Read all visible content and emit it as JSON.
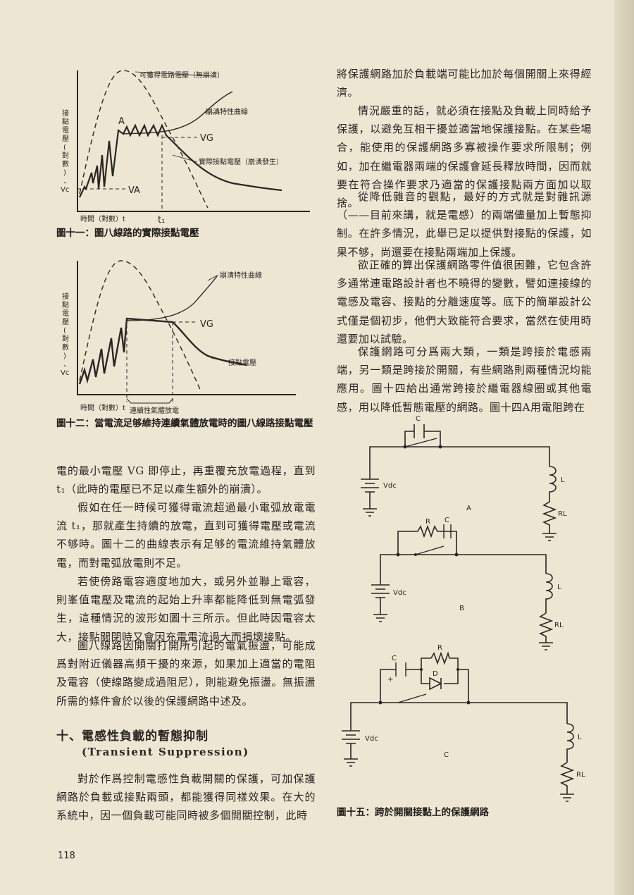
{
  "figure11": {
    "label_available_voltage": "可獲得電路電壓（無崩潰）",
    "label_breakdown_curve": "崩潰特性曲線",
    "label_actual_voltage": "實際接點電壓（崩潰發生）",
    "y_axis_label": [
      "接",
      "點",
      "電",
      "壓",
      "(",
      "對",
      "數",
      ")",
      "、",
      "Vc"
    ],
    "x_axis_label": "時間（對數）t",
    "point_a": "A",
    "vg_label": "VG",
    "va_label": "VA",
    "t1_label": "t₁",
    "caption": "圖十一：圖八線路的實際接點電壓"
  },
  "figure12": {
    "label_breakdown_curve": "崩潰特性曲線",
    "label_contact_voltage": "接點電壓",
    "y_axis_label": [
      "接",
      "點",
      "電",
      "壓",
      "(",
      "對",
      "數",
      ")",
      "、",
      "Vc"
    ],
    "x_axis_label": "時間（對數）t",
    "vg_label": "VG",
    "discharge_label": "連續性氣體放電",
    "caption": "圖十二：當電流足够維持連續氣體放電時的圖八線路接點電壓"
  },
  "left_column": {
    "p1": "電的最小電壓 VG 即停止，再重覆充放電過程，直到 t₁（此時的電壓已不足以產生額外的崩潰）。",
    "p2": "假如在任一時候可獲得電流超過最小電弧放電電流 t₁，那就產生持續的放電，直到可獲得電壓或電流不够時。圖十二的曲線表示有足够的電流維持氣體放電，而對電弧放電則不足。",
    "p3": "若使傍路電容適度地加大，或另外並聯上電容，則峯值電壓及電流的起始上升率都能降低到無電弧發生，這種情況的波形如圖十三所示。但此時因電容太大，接點關閉時又會因充電電流過大而損壞接點。",
    "p4": "圖八線路因開關打開所引起的電氣振盪，可能成爲對附近儀器高頻干擾的來源，如果加上適當的電阻及電容（使線路變成過阻尼），則能避免振盪。無振盪所需的條件會於以後的保護網路中述及。",
    "section_title": "十、電感性負載的暫態抑制",
    "section_subtitle": "(Transient Suppression)",
    "p5": "對於作爲控制電感性負載開關的保護，可加保護網路於負載或接點兩頭，都能獲得同樣效果。在大的系統中，因一個負載可能同時被多個開關控制，此時"
  },
  "right_column": {
    "p1": "將保護網路加於負載端可能比加於每個開關上來得經濟。",
    "p2": "情況嚴重的話，就必須在接點及負載上同時給予保護，以避免互相干擾並適當地保護接點。在某些場合，能使用的保護網路多寡被操作要求所限制；例如，加在繼電器兩端的保護會延長釋放時間，因而就要在符合操作要求乃適當的保護接點兩方面加以取捨。",
    "p3": "從降低雜音的觀點，最好的方式就是對雜訊源（——目前來講，就是電感）的兩端儘量加上暫態抑制。在許多情況，此舉已足以提供對接點的保護，如果不够，尚還要在接點兩端加上保護。",
    "p4": "欲正確的算出保護網路零件值很困難，它包含許多通常連電路設計者也不曉得的變數，譬如連接線的電感及電容、接點的分離速度等。底下的簡單設計公式僅是個初步，他們大致能符合要求，當然在使用時還要加以試驗。",
    "p5": "保護網路可分爲兩大類，一類是跨接於電感兩端，另一類是跨接於開關，有些網路則兩種情況均能應用。圖十四給出通常跨接於繼電器線圈或其他電感，用以降低暫態電壓的網路。圖十四A用電阻跨在"
  },
  "figure15": {
    "circuit_a": {
      "cap": "C",
      "source": "Vdc",
      "inductor": "L",
      "resistor": "RL",
      "tag": "A"
    },
    "circuit_b": {
      "res": "R",
      "cap": "C",
      "source": "Vdc",
      "inductor": "L",
      "resistor": "RL",
      "tag": "B"
    },
    "circuit_c": {
      "res": "R",
      "cap": "C",
      "diode": "D",
      "plus": "+",
      "source": "Vdc",
      "inductor": "L",
      "resistor": "RL",
      "tag": "C"
    },
    "caption": "圖十五：跨於開關接點上的保護網路"
  },
  "page_number": "118"
}
